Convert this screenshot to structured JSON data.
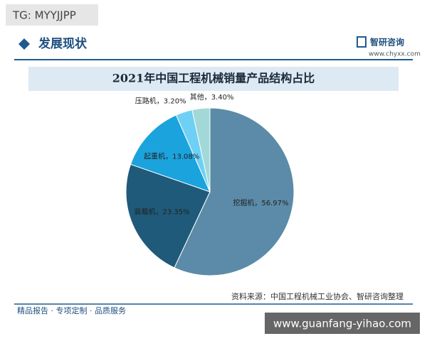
{
  "badge": "TG: MYYJJPP",
  "header": {
    "section": "发展现状",
    "brand": "智研咨询",
    "site": "www.chyxx.com"
  },
  "chart_data": {
    "type": "pie",
    "title": "2021年中国工程机械销量产品结构占比",
    "values": [
      56.97,
      23.35,
      13.08,
      3.2,
      3.4
    ],
    "value_labels": [
      "挖掘机，56.97%",
      "装载机，23.35%",
      "起重机，13.08%",
      "压路机，3.20%",
      "其他，3.40%"
    ],
    "colors": [
      "#5b8ba8",
      "#1f5a7a",
      "#1ba3dd",
      "#6fd0f5",
      "#a3d8d8"
    ]
  },
  "footer": {
    "source": "资料来源：中国工程机械工业协会、智研咨询整理",
    "slogan": "精品报告 · 专项定制 · 品质服务",
    "watermark": "www.guanfang-yihao.com"
  }
}
